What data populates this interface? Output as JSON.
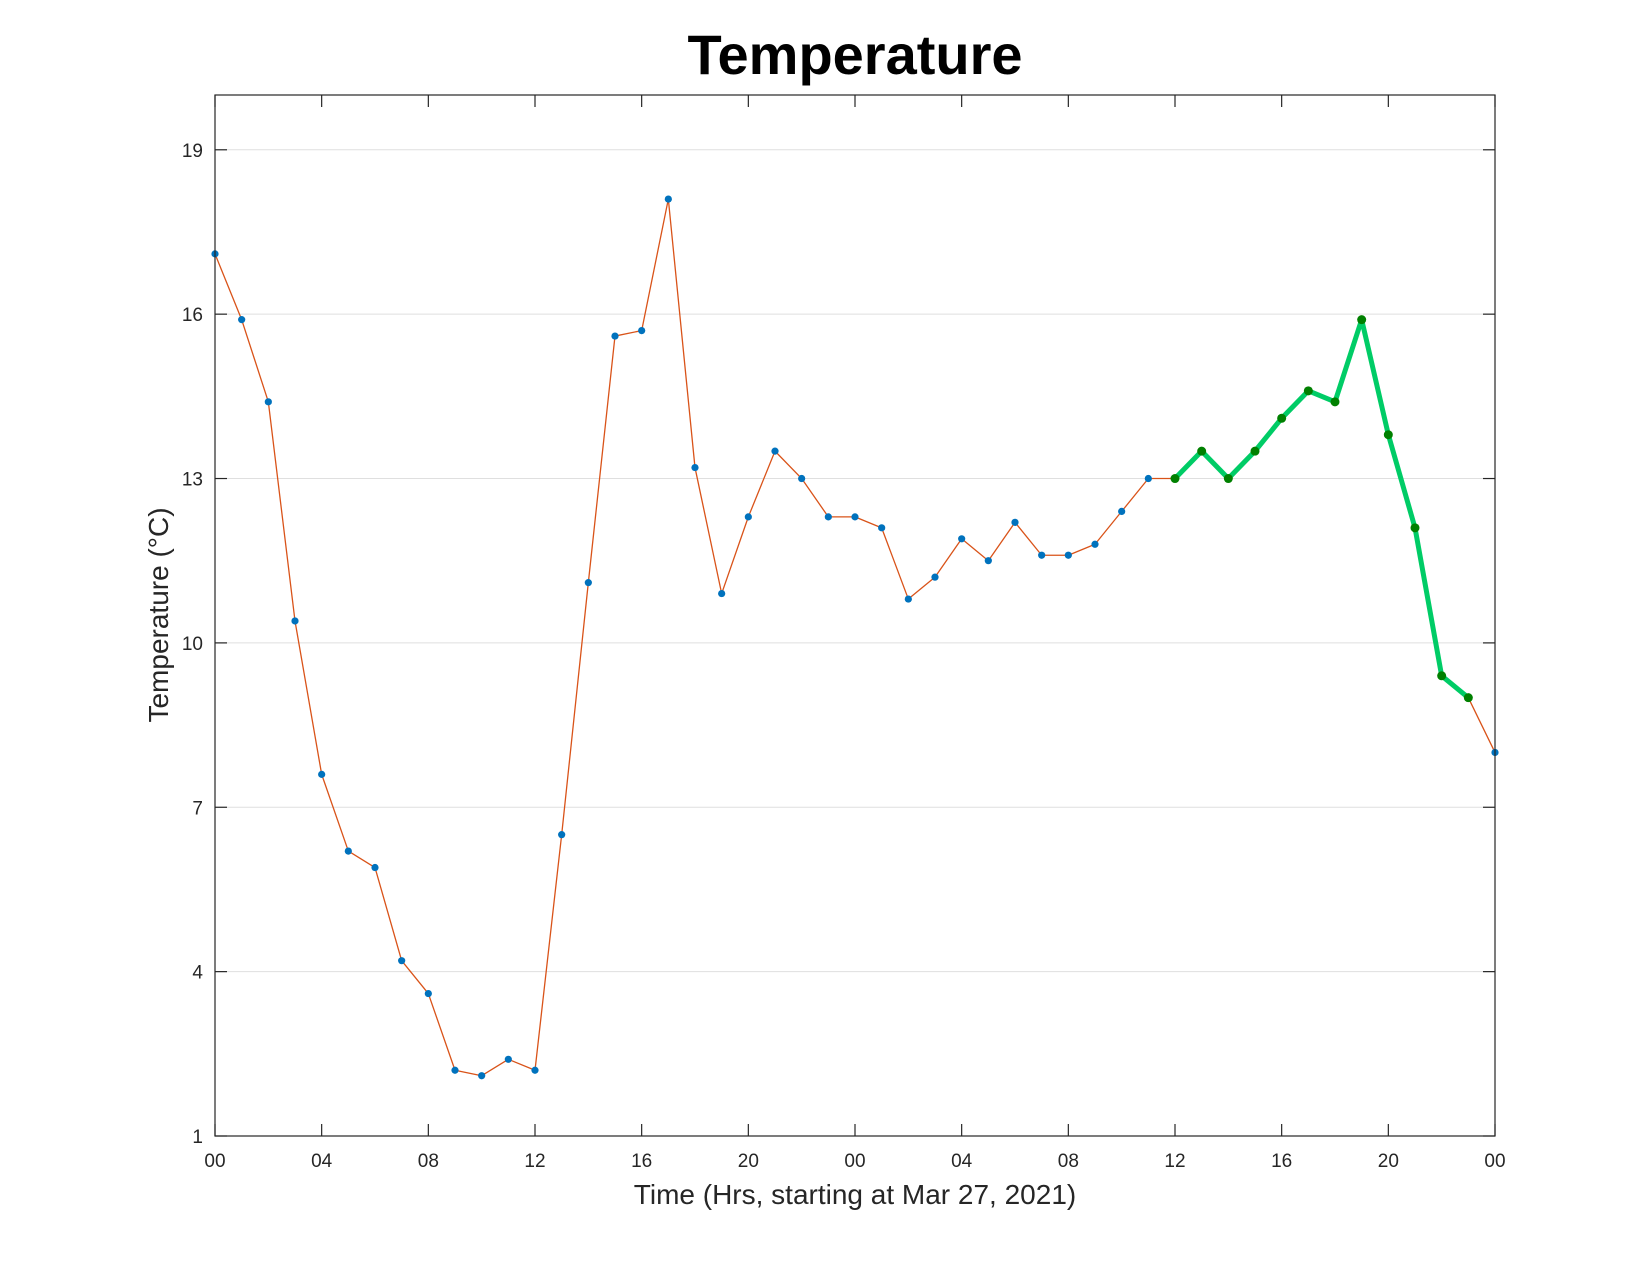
{
  "chart_data": {
    "type": "line",
    "title": "Temperature",
    "xlabel": "Time (Hrs, starting at Mar 27, 2021)",
    "ylabel": "Temperature (°C)",
    "x_start_date": "2021-03-27",
    "xlim_hours": [
      0,
      48
    ],
    "ylim": [
      1,
      20
    ],
    "x_ticks": [
      {
        "hour": 0,
        "label": "00"
      },
      {
        "hour": 4,
        "label": "04"
      },
      {
        "hour": 8,
        "label": "08"
      },
      {
        "hour": 12,
        "label": "12"
      },
      {
        "hour": 16,
        "label": "16"
      },
      {
        "hour": 20,
        "label": "20"
      },
      {
        "hour": 24,
        "label": "00"
      },
      {
        "hour": 28,
        "label": "04"
      },
      {
        "hour": 32,
        "label": "08"
      },
      {
        "hour": 36,
        "label": "12"
      },
      {
        "hour": 40,
        "label": "16"
      },
      {
        "hour": 44,
        "label": "20"
      },
      {
        "hour": 48,
        "label": "00"
      }
    ],
    "y_ticks": [
      1,
      4,
      7,
      10,
      13,
      16,
      19
    ],
    "grid": {
      "horizontal": true,
      "vertical": false
    },
    "series": [
      {
        "color": "#d95319",
        "marker_color": "#0072bd",
        "x": [
          0,
          1,
          2,
          3,
          4,
          5,
          6,
          7,
          8,
          9,
          10,
          11,
          12,
          13,
          14,
          15,
          16,
          17,
          18,
          19,
          20,
          21,
          22,
          23,
          24,
          25,
          26,
          27,
          28,
          29,
          30,
          31,
          32,
          33,
          34,
          35,
          36,
          37,
          38,
          39,
          40,
          41,
          42,
          43,
          44,
          45,
          46,
          47,
          48
        ],
        "y": [
          17.1,
          15.9,
          14.4,
          10.4,
          7.6,
          6.2,
          5.9,
          4.2,
          3.6,
          2.2,
          2.1,
          2.4,
          2.2,
          6.5,
          11.1,
          15.6,
          15.7,
          18.1,
          13.2,
          10.9,
          12.3,
          13.5,
          13.0,
          12.3,
          12.3,
          12.1,
          10.8,
          11.2,
          11.9,
          11.5,
          12.2,
          11.6,
          11.6,
          11.8,
          12.4,
          13.0,
          13.0,
          13.5,
          13.0,
          13.5,
          14.1,
          14.6,
          14.4,
          15.9,
          13.8,
          12.1,
          9.4,
          9.0,
          8.0
        ]
      },
      {
        "color": "#00cc66",
        "marker_color": "#008000",
        "x": [
          36,
          37,
          38,
          39,
          40,
          41,
          42,
          43,
          44,
          45,
          46,
          47
        ],
        "y": [
          13.0,
          13.5,
          13.0,
          13.5,
          14.1,
          14.6,
          14.4,
          15.9,
          13.8,
          12.1,
          9.4,
          9.0
        ]
      }
    ]
  }
}
